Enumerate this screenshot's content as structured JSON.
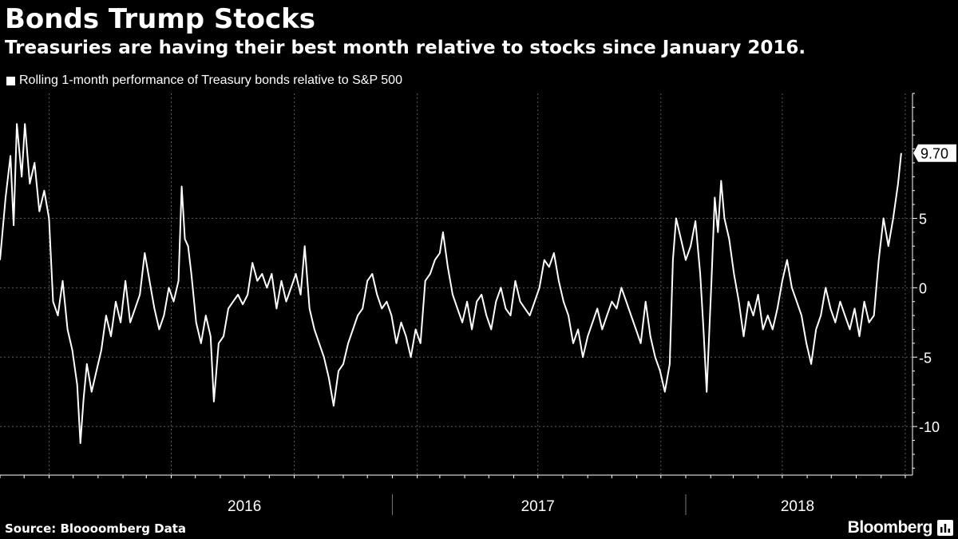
{
  "header": {
    "title": "Bonds Trump Stocks",
    "subtitle": "Treasuries are having their best month relative to stocks since January 2016."
  },
  "footer": {
    "source": "Source: Bloooomberg Data",
    "brand": "Bloomberg"
  },
  "colors": {
    "background": "#000000",
    "line": "#ffffff",
    "grid": "#5a5a5a"
  },
  "icons": {
    "brand": "bloomberg-terminal-icon"
  },
  "chart_data": {
    "type": "line",
    "title": "Bonds Trump Stocks",
    "subtitle": "Treasuries are having their best month relative to stocks since January 2016.",
    "xlabel": "",
    "ylabel": "",
    "x_range": [
      "2015-09-01",
      "2018-10-10"
    ],
    "ylim": [
      -13.5,
      14
    ],
    "yticks": [
      -10,
      -5,
      0,
      5
    ],
    "ytick_labels": [
      "-10",
      "-5",
      "0",
      "5"
    ],
    "x_year_labels": [
      {
        "label": "2016",
        "position": "2016-07-01"
      },
      {
        "label": "2017",
        "position": "2017-07-01"
      },
      {
        "label": "2018",
        "position": "2018-05-20"
      }
    ],
    "x_gridlines": [
      "2015-11-01",
      "2016-04-01",
      "2016-09-01",
      "2017-02-01",
      "2017-07-01",
      "2017-12-01",
      "2018-05-01",
      "2018-10-01"
    ],
    "year_separators": [
      "2017-01-01",
      "2018-01-01"
    ],
    "grid": true,
    "legend_position": "top-left",
    "last_value_label": "9.70",
    "series": [
      {
        "name": "Rolling 1-month performance of Treasury bonds relative to S&P 500",
        "points": [
          [
            "2015-09-01",
            2.0
          ],
          [
            "2015-09-08",
            6.5
          ],
          [
            "2015-09-14",
            9.5
          ],
          [
            "2015-09-18",
            4.5
          ],
          [
            "2015-09-22",
            11.8
          ],
          [
            "2015-09-28",
            8.0
          ],
          [
            "2015-10-02",
            11.8
          ],
          [
            "2015-10-08",
            7.5
          ],
          [
            "2015-10-14",
            9.0
          ],
          [
            "2015-10-20",
            5.5
          ],
          [
            "2015-10-26",
            7.0
          ],
          [
            "2015-11-01",
            5.0
          ],
          [
            "2015-11-06",
            -1.0
          ],
          [
            "2015-11-12",
            -2.0
          ],
          [
            "2015-11-18",
            0.5
          ],
          [
            "2015-11-24",
            -3.0
          ],
          [
            "2015-11-30",
            -4.5
          ],
          [
            "2015-12-06",
            -7.0
          ],
          [
            "2015-12-10",
            -11.2
          ],
          [
            "2015-12-14",
            -8.0
          ],
          [
            "2015-12-18",
            -5.5
          ],
          [
            "2015-12-24",
            -7.5
          ],
          [
            "2015-12-30",
            -6.0
          ],
          [
            "2016-01-05",
            -4.5
          ],
          [
            "2016-01-11",
            -2.0
          ],
          [
            "2016-01-17",
            -3.5
          ],
          [
            "2016-01-23",
            -1.0
          ],
          [
            "2016-01-29",
            -2.5
          ],
          [
            "2016-02-04",
            0.5
          ],
          [
            "2016-02-10",
            -2.5
          ],
          [
            "2016-02-16",
            -1.5
          ],
          [
            "2016-02-22",
            -0.5
          ],
          [
            "2016-02-28",
            2.5
          ],
          [
            "2016-03-05",
            0.5
          ],
          [
            "2016-03-11",
            -1.5
          ],
          [
            "2016-03-17",
            -3.0
          ],
          [
            "2016-03-23",
            -2.0
          ],
          [
            "2016-03-29",
            0.0
          ],
          [
            "2016-04-04",
            -1.0
          ],
          [
            "2016-04-10",
            0.5
          ],
          [
            "2016-04-14",
            7.3
          ],
          [
            "2016-04-18",
            3.5
          ],
          [
            "2016-04-22",
            3.0
          ],
          [
            "2016-04-26",
            1.0
          ],
          [
            "2016-05-02",
            -2.5
          ],
          [
            "2016-05-08",
            -4.0
          ],
          [
            "2016-05-14",
            -2.0
          ],
          [
            "2016-05-20",
            -3.5
          ],
          [
            "2016-05-24",
            -8.2
          ],
          [
            "2016-05-30",
            -4.0
          ],
          [
            "2016-06-05",
            -3.5
          ],
          [
            "2016-06-11",
            -1.5
          ],
          [
            "2016-06-17",
            -1.0
          ],
          [
            "2016-06-23",
            -0.5
          ],
          [
            "2016-06-29",
            -1.2
          ],
          [
            "2016-07-05",
            -0.5
          ],
          [
            "2016-07-11",
            1.8
          ],
          [
            "2016-07-17",
            0.5
          ],
          [
            "2016-07-23",
            1.0
          ],
          [
            "2016-07-29",
            0.0
          ],
          [
            "2016-08-04",
            1.0
          ],
          [
            "2016-08-10",
            -1.5
          ],
          [
            "2016-08-16",
            0.5
          ],
          [
            "2016-08-22",
            -1.0
          ],
          [
            "2016-08-28",
            0.0
          ],
          [
            "2016-09-03",
            1.0
          ],
          [
            "2016-09-09",
            -0.5
          ],
          [
            "2016-09-14",
            3.0
          ],
          [
            "2016-09-20",
            -1.5
          ],
          [
            "2016-09-26",
            -3.0
          ],
          [
            "2016-10-02",
            -4.0
          ],
          [
            "2016-10-08",
            -5.0
          ],
          [
            "2016-10-14",
            -6.5
          ],
          [
            "2016-10-20",
            -8.5
          ],
          [
            "2016-10-26",
            -6.0
          ],
          [
            "2016-11-01",
            -5.5
          ],
          [
            "2016-11-07",
            -4.0
          ],
          [
            "2016-11-13",
            -3.0
          ],
          [
            "2016-11-19",
            -2.0
          ],
          [
            "2016-11-25",
            -1.5
          ],
          [
            "2016-12-01",
            0.5
          ],
          [
            "2016-12-07",
            1.0
          ],
          [
            "2016-12-13",
            -0.5
          ],
          [
            "2016-12-19",
            -1.5
          ],
          [
            "2016-12-25",
            -1.0
          ],
          [
            "2016-12-31",
            -2.0
          ],
          [
            "2017-01-06",
            -4.0
          ],
          [
            "2017-01-12",
            -2.5
          ],
          [
            "2017-01-18",
            -3.5
          ],
          [
            "2017-01-24",
            -5.0
          ],
          [
            "2017-01-30",
            -3.0
          ],
          [
            "2017-02-05",
            -4.0
          ],
          [
            "2017-02-11",
            0.5
          ],
          [
            "2017-02-17",
            1.0
          ],
          [
            "2017-02-23",
            2.0
          ],
          [
            "2017-03-01",
            2.5
          ],
          [
            "2017-03-05",
            4.0
          ],
          [
            "2017-03-11",
            1.5
          ],
          [
            "2017-03-17",
            -0.5
          ],
          [
            "2017-03-23",
            -1.5
          ],
          [
            "2017-03-29",
            -2.5
          ],
          [
            "2017-04-04",
            -1.0
          ],
          [
            "2017-04-10",
            -3.0
          ],
          [
            "2017-04-16",
            -1.0
          ],
          [
            "2017-04-22",
            -0.5
          ],
          [
            "2017-04-28",
            -2.0
          ],
          [
            "2017-05-04",
            -3.0
          ],
          [
            "2017-05-10",
            -1.0
          ],
          [
            "2017-05-16",
            0.0
          ],
          [
            "2017-05-22",
            -1.5
          ],
          [
            "2017-05-28",
            -2.0
          ],
          [
            "2017-06-03",
            0.5
          ],
          [
            "2017-06-09",
            -1.0
          ],
          [
            "2017-06-15",
            -1.5
          ],
          [
            "2017-06-21",
            -2.0
          ],
          [
            "2017-06-27",
            -1.0
          ],
          [
            "2017-07-03",
            0.0
          ],
          [
            "2017-07-09",
            2.0
          ],
          [
            "2017-07-15",
            1.5
          ],
          [
            "2017-07-21",
            2.5
          ],
          [
            "2017-07-27",
            0.5
          ],
          [
            "2017-08-02",
            -1.0
          ],
          [
            "2017-08-08",
            -2.0
          ],
          [
            "2017-08-14",
            -4.0
          ],
          [
            "2017-08-20",
            -3.0
          ],
          [
            "2017-08-26",
            -5.0
          ],
          [
            "2017-09-01",
            -3.5
          ],
          [
            "2017-09-07",
            -2.5
          ],
          [
            "2017-09-13",
            -1.5
          ],
          [
            "2017-09-19",
            -3.0
          ],
          [
            "2017-09-25",
            -2.0
          ],
          [
            "2017-10-01",
            -1.0
          ],
          [
            "2017-10-07",
            -1.5
          ],
          [
            "2017-10-13",
            0.0
          ],
          [
            "2017-10-19",
            -1.0
          ],
          [
            "2017-10-25",
            -2.0
          ],
          [
            "2017-10-31",
            -3.0
          ],
          [
            "2017-11-06",
            -4.0
          ],
          [
            "2017-11-12",
            -1.0
          ],
          [
            "2017-11-18",
            -3.5
          ],
          [
            "2017-11-24",
            -5.0
          ],
          [
            "2017-11-30",
            -6.0
          ],
          [
            "2017-12-06",
            -7.5
          ],
          [
            "2017-12-12",
            -5.5
          ],
          [
            "2017-12-16",
            2.0
          ],
          [
            "2017-12-20",
            5.0
          ],
          [
            "2017-12-26",
            3.5
          ],
          [
            "2018-01-01",
            2.0
          ],
          [
            "2018-01-07",
            3.0
          ],
          [
            "2018-01-13",
            4.8
          ],
          [
            "2018-01-19",
            1.0
          ],
          [
            "2018-01-23",
            -3.0
          ],
          [
            "2018-01-27",
            -7.5
          ],
          [
            "2018-02-02",
            0.5
          ],
          [
            "2018-02-06",
            6.5
          ],
          [
            "2018-02-10",
            4.0
          ],
          [
            "2018-02-14",
            7.7
          ],
          [
            "2018-02-18",
            5.0
          ],
          [
            "2018-02-24",
            3.5
          ],
          [
            "2018-03-02",
            1.0
          ],
          [
            "2018-03-08",
            -1.0
          ],
          [
            "2018-03-14",
            -3.5
          ],
          [
            "2018-03-20",
            -1.0
          ],
          [
            "2018-03-26",
            -2.0
          ],
          [
            "2018-04-01",
            -0.5
          ],
          [
            "2018-04-07",
            -3.0
          ],
          [
            "2018-04-13",
            -2.0
          ],
          [
            "2018-04-19",
            -3.0
          ],
          [
            "2018-04-25",
            -1.5
          ],
          [
            "2018-05-01",
            0.5
          ],
          [
            "2018-05-07",
            2.0
          ],
          [
            "2018-05-13",
            0.0
          ],
          [
            "2018-05-19",
            -1.0
          ],
          [
            "2018-05-25",
            -2.0
          ],
          [
            "2018-05-31",
            -4.0
          ],
          [
            "2018-06-06",
            -5.5
          ],
          [
            "2018-06-12",
            -3.0
          ],
          [
            "2018-06-18",
            -2.0
          ],
          [
            "2018-06-24",
            0.0
          ],
          [
            "2018-06-30",
            -1.5
          ],
          [
            "2018-07-06",
            -2.5
          ],
          [
            "2018-07-12",
            -1.0
          ],
          [
            "2018-07-18",
            -2.0
          ],
          [
            "2018-07-24",
            -3.0
          ],
          [
            "2018-07-30",
            -1.5
          ],
          [
            "2018-08-05",
            -3.5
          ],
          [
            "2018-08-11",
            -1.0
          ],
          [
            "2018-08-17",
            -2.5
          ],
          [
            "2018-08-23",
            -2.0
          ],
          [
            "2018-08-29",
            2.0
          ],
          [
            "2018-09-04",
            5.0
          ],
          [
            "2018-09-10",
            3.0
          ],
          [
            "2018-09-16",
            5.0
          ],
          [
            "2018-09-22",
            7.5
          ],
          [
            "2018-09-26",
            9.7
          ]
        ]
      }
    ]
  }
}
